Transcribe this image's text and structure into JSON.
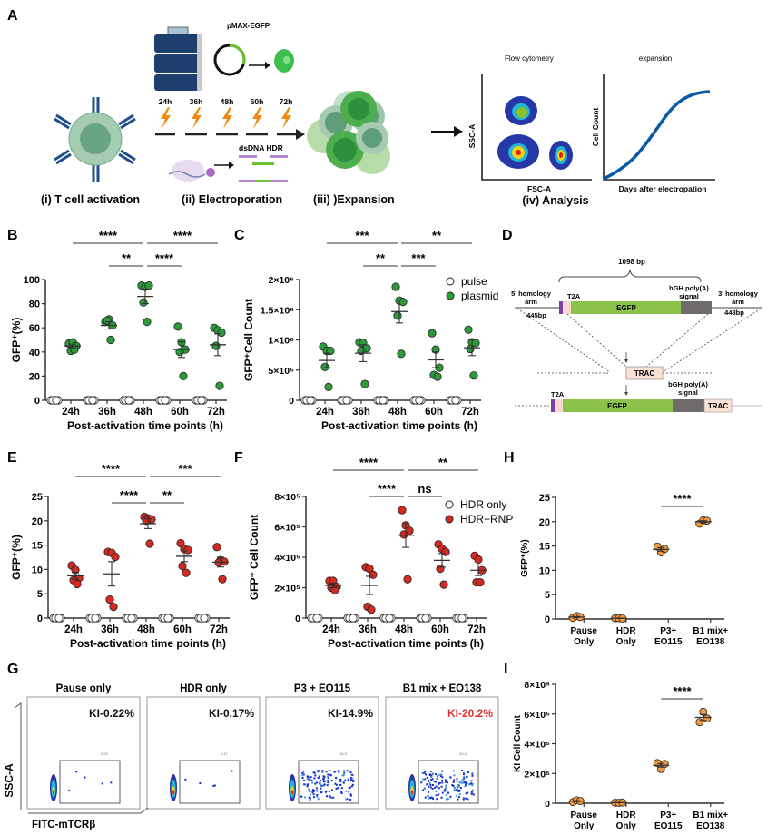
{
  "panel_labels": [
    "A",
    "B",
    "C",
    "D",
    "E",
    "F",
    "G",
    "H",
    "I"
  ],
  "panelA": {
    "device_name": "electroporator",
    "plasmid_label": "pMAX-EGFP",
    "time_points": [
      "24h",
      "36h",
      "48h",
      "60h",
      "72h"
    ],
    "hdr_label": "dsDNA HDR",
    "steps": [
      "(i) T cell activation",
      "(ii) Electroporation",
      "(iii) )Expansion",
      "(iv)  Analysis"
    ],
    "flow_title": "Flow cytometry",
    "flow_xlabel": "FSC-A",
    "flow_ylabel": "SSC-A",
    "expansion_title": "expansion",
    "expansion_xlabel": "Days after electropation",
    "expansion_ylabel": "Cell Count",
    "colors": {
      "cell": "#8fc4a0",
      "antibody": "#1f4e8c",
      "bolt": "#f08a12",
      "expansion_curve": "#0b5aa6"
    }
  },
  "panelD": {
    "insert_size": "1098 bp",
    "left_arm": "5' homology\narm",
    "left_arm_bp": "445bp",
    "right_arm": "3' homology\narm",
    "right_arm_bp": "448bp",
    "t2a": "T2A",
    "egfp": "EGFP",
    "polyA": "bGH poly(A)\nsignal",
    "trac": "TRAC",
    "colors": {
      "egfp": "#8bc34a",
      "polyA": "#706b6b",
      "trac": "#fbe2d4",
      "t2a": "#f7d6d6",
      "tag": "#7b3fa0"
    }
  },
  "panelG": {
    "xlabel": "FITC-mTCRβ",
    "ylabel": "SSC-A",
    "plots": [
      {
        "title": "Pause only",
        "ki": "KI-0.22%",
        "gate_value": "0.22",
        "highlight": false
      },
      {
        "title": "HDR only",
        "ki": "KI-0.17%",
        "gate_value": "0.17",
        "highlight": false
      },
      {
        "title": "P3 + EO115",
        "ki": "KI-14.9%",
        "gate_value": "14.9",
        "highlight": false
      },
      {
        "title": "B1 mix + EO138",
        "ki": "KI-20.2%",
        "gate_value": "20.2",
        "highlight": true
      }
    ],
    "highlight_color": "#e03030"
  },
  "chart_data": [
    {
      "id": "B",
      "type": "scatter",
      "title": "",
      "xlabel": "Post-activation time points (h)",
      "ylabel": "GFP⁺(%)",
      "categories": [
        "24h",
        "36h",
        "48h",
        "60h",
        "72h"
      ],
      "ylim": [
        0,
        100
      ],
      "yticks": [
        0,
        20,
        40,
        60,
        80,
        100
      ],
      "ytick_labels": [
        "0",
        "20",
        "40",
        "60",
        "80",
        "100"
      ],
      "series": [
        {
          "name": "pulse",
          "color": "#ffffff",
          "values": [
            [
              0,
              0,
              0,
              0,
              0
            ],
            [
              0,
              0,
              0,
              0,
              0
            ],
            [
              0,
              0,
              0,
              0,
              0
            ],
            [
              0,
              0,
              0,
              0,
              0
            ],
            [
              0,
              0,
              0,
              0,
              0
            ]
          ],
          "mean": [
            0,
            0,
            0,
            0,
            0
          ],
          "sem": [
            0,
            0,
            0,
            0,
            0
          ]
        },
        {
          "name": "plasmid",
          "color": "#2e9b3a",
          "values": [
            [
              47,
              48,
              45,
              41,
              42
            ],
            [
              65,
              67,
              62,
              66,
              50
            ],
            [
              95,
              94,
              95,
              81,
              65
            ],
            [
              61,
              48,
              42,
              40,
              20
            ],
            [
              60,
              58,
              56,
              45,
              12
            ]
          ],
          "mean": [
            45,
            62,
            86,
            42,
            46
          ],
          "sem": [
            1.5,
            3,
            6,
            6.5,
            9
          ]
        }
      ],
      "significance": [
        {
          "from": "24h",
          "to": "48h",
          "label": "****",
          "level": 2
        },
        {
          "from": "48h",
          "to": "72h",
          "label": "****",
          "level": 2
        },
        {
          "from": "36h",
          "to": "48h",
          "label": "**",
          "level": 1
        },
        {
          "from": "48h",
          "to": "60h",
          "label": "****",
          "level": 1
        }
      ]
    },
    {
      "id": "C",
      "type": "scatter",
      "title": "",
      "xlabel": "Post-activation time points (h)",
      "ylabel": "GFP⁺Cell Count",
      "categories": [
        "24h",
        "36h",
        "48h",
        "60h",
        "72h"
      ],
      "ylim": [
        0,
        2000000
      ],
      "yticks": [
        0,
        500000,
        1000000,
        1500000,
        2000000
      ],
      "ytick_labels": [
        "0",
        "5×10⁵",
        "1×10⁶",
        "1.5×10⁶",
        "2×10⁶"
      ],
      "legend": {
        "position": "top-right",
        "entries": [
          "pulse",
          "plasmid"
        ]
      },
      "series": [
        {
          "name": "pulse",
          "color": "#ffffff",
          "values": [
            [
              0,
              0,
              0,
              0,
              0
            ],
            [
              0,
              0,
              0,
              0,
              0
            ],
            [
              0,
              0,
              0,
              0,
              0
            ],
            [
              0,
              0,
              0,
              0,
              0
            ],
            [
              0,
              0,
              0,
              0,
              0
            ]
          ],
          "mean": [
            0,
            0,
            0,
            0,
            0
          ],
          "sem": [
            0,
            0,
            0,
            0,
            0
          ]
        },
        {
          "name": "plasmid",
          "color": "#2e9b3a",
          "values": [
            [
              890000,
              820000,
              820000,
              550000,
              220000
            ],
            [
              960000,
              950000,
              860000,
              820000,
              270000
            ],
            [
              1880000,
              1650000,
              1630000,
              1400000,
              770000
            ],
            [
              1110000,
              840000,
              540000,
              420000,
              390000
            ],
            [
              1170000,
              960000,
              950000,
              850000,
              410000
            ]
          ],
          "mean": [
            660000,
            780000,
            1470000,
            670000,
            870000
          ],
          "sem": [
            120000,
            140000,
            190000,
            130000,
            130000
          ]
        }
      ],
      "significance": [
        {
          "from": "24h",
          "to": "48h",
          "label": "***",
          "level": 2
        },
        {
          "from": "48h",
          "to": "72h",
          "label": "**",
          "level": 2
        },
        {
          "from": "36h",
          "to": "48h",
          "label": "**",
          "level": 1
        },
        {
          "from": "48h",
          "to": "60h",
          "label": "***",
          "level": 1
        }
      ]
    },
    {
      "id": "E",
      "type": "scatter",
      "title": "",
      "xlabel": "Post-activation time points (h)",
      "ylabel": "GFP⁺(%)",
      "categories": [
        "24h",
        "36h",
        "48h",
        "60h",
        "72h"
      ],
      "ylim": [
        0,
        25
      ],
      "yticks": [
        0,
        5,
        10,
        15,
        20,
        25
      ],
      "ytick_labels": [
        "0",
        "5",
        "10",
        "15",
        "20",
        "25"
      ],
      "series": [
        {
          "name": "HDR only",
          "color": "#ffffff",
          "values": [
            [
              0,
              0,
              0,
              0,
              0
            ],
            [
              0,
              0,
              0,
              0,
              0
            ],
            [
              0,
              0,
              0,
              0,
              0
            ],
            [
              0,
              0,
              0,
              0,
              0
            ],
            [
              0,
              0,
              0,
              0,
              0
            ]
          ],
          "mean": [
            0,
            0,
            0,
            0,
            0
          ],
          "sem": [
            0,
            0,
            0,
            0,
            0
          ]
        },
        {
          "name": "HDR+RNP",
          "color": "#d42a20",
          "values": [
            [
              10.8,
              9.9,
              8.2,
              7.8,
              7.0
            ],
            [
              13.6,
              13.4,
              12.6,
              3.8,
              2.3
            ],
            [
              20.8,
              20.5,
              20.3,
              20.0,
              15.3
            ],
            [
              15.4,
              14.2,
              14.0,
              10.7,
              9.3
            ],
            [
              14.6,
              11.9,
              11.6,
              11.4,
              8.0
            ]
          ],
          "mean": [
            8.7,
            9.1,
            19.4,
            12.7,
            11.5
          ],
          "sem": [
            0.7,
            2.5,
            1.0,
            1.1,
            1.0
          ]
        }
      ],
      "significance": [
        {
          "from": "24h",
          "to": "48h",
          "label": "****",
          "level": 2
        },
        {
          "from": "48h",
          "to": "72h",
          "label": "***",
          "level": 2
        },
        {
          "from": "36h",
          "to": "48h",
          "label": "****",
          "level": 1
        },
        {
          "from": "48h",
          "to": "60h",
          "label": "**",
          "level": 1
        }
      ]
    },
    {
      "id": "F",
      "type": "scatter",
      "title": "",
      "xlabel": "Post-activation time points (h)",
      "ylabel": "GFP⁺ Cell Count",
      "categories": [
        "24h",
        "36h",
        "48h",
        "60h",
        "72h"
      ],
      "ylim": [
        0,
        800000
      ],
      "yticks": [
        0,
        200000,
        400000,
        600000,
        800000
      ],
      "ytick_labels": [
        "0",
        "2×10⁵",
        "4×10⁵",
        "6×10⁵",
        "8×10⁵"
      ],
      "legend": {
        "position": "top-right",
        "entries": [
          "HDR only",
          "HDR+RNP"
        ]
      },
      "series": [
        {
          "name": "HDR only",
          "color": "#ffffff",
          "values": [
            [
              0,
              0,
              0,
              0,
              0
            ],
            [
              0,
              0,
              0,
              0,
              0
            ],
            [
              0,
              0,
              0,
              0,
              0
            ],
            [
              0,
              0,
              0,
              0,
              0
            ],
            [
              0,
              0,
              0,
              0,
              0
            ]
          ],
          "mean": [
            0,
            0,
            0,
            0,
            0
          ],
          "sem": [
            0,
            0,
            0,
            0,
            0
          ]
        },
        {
          "name": "HDR+RNP",
          "color": "#d42a20",
          "values": [
            [
              245000,
              245000,
              205000,
              200000,
              185000
            ],
            [
              335000,
              325000,
              285000,
              75000,
              55000
            ],
            [
              710000,
              610000,
              575000,
              550000,
              255000
            ],
            [
              485000,
              455000,
              435000,
              325000,
              220000
            ],
            [
              410000,
              385000,
              315000,
              235000,
              235000
            ]
          ],
          "mean": [
            215000,
            215000,
            545000,
            380000,
            315000
          ],
          "sem": [
            15000,
            60000,
            80000,
            45000,
            35000
          ]
        }
      ],
      "significance": [
        {
          "from": "24h",
          "to": "48h",
          "label": "****",
          "level": 2
        },
        {
          "from": "48h",
          "to": "72h",
          "label": "**",
          "level": 2
        },
        {
          "from": "36h",
          "to": "48h",
          "label": "****",
          "level": 1
        },
        {
          "from": "48h",
          "to": "60h",
          "label": "ns",
          "level": 1
        }
      ]
    },
    {
      "id": "H",
      "type": "scatter",
      "title": "",
      "xlabel": "",
      "ylabel": "GFP⁺(%)",
      "categories": [
        "Pause\nOnly",
        "HDR\nOnly",
        "P3+\nEO115",
        "B1 mix+\nEO138"
      ],
      "ylim": [
        0,
        25
      ],
      "yticks": [
        0,
        5,
        10,
        15,
        20,
        25
      ],
      "ytick_labels": [
        "0",
        "5",
        "10",
        "15",
        "20",
        "25"
      ],
      "series": [
        {
          "name": "KI",
          "color": "#f39a3c",
          "values": [
            [
              0.22,
              0.6,
              0.4
            ],
            [
              0.17,
              0.15,
              0.1
            ],
            [
              14.9,
              13.7,
              14.4
            ],
            [
              19.6,
              20.3,
              20.2
            ]
          ],
          "mean": [
            0.4,
            0.14,
            14.3,
            20.0
          ],
          "sem": [
            0.1,
            0.02,
            0.35,
            0.2
          ]
        }
      ],
      "significance": [
        {
          "from": "P3+\nEO115",
          "to": "B1 mix+\nEO138",
          "label": "****",
          "level": 1
        }
      ]
    },
    {
      "id": "I",
      "type": "scatter",
      "title": "",
      "xlabel": "",
      "ylabel": "KI Cell Count",
      "categories": [
        "Pause\nOnly",
        "HDR\nOnly",
        "P3+\nEO115",
        "B1 mix+\nEO138"
      ],
      "ylim": [
        0,
        800000
      ],
      "yticks": [
        0,
        200000,
        400000,
        600000,
        800000
      ],
      "ytick_labels": [
        "0",
        "2×10⁵",
        "4×10⁵",
        "6×10⁵",
        "8×10⁵"
      ],
      "series": [
        {
          "name": "KI",
          "color": "#f39a3c",
          "values": [
            [
              8000,
              20000,
              15000
            ],
            [
              4000,
              3000,
              5000
            ],
            [
              270000,
              230000,
              265000
            ],
            [
              545000,
              615000,
              570000
            ]
          ],
          "mean": [
            14000,
            4000,
            255000,
            577000
          ],
          "sem": [
            3500,
            600,
            12000,
            20000
          ]
        }
      ],
      "significance": [
        {
          "from": "P3+\nEO115",
          "to": "B1 mix+\nEO138",
          "label": "****",
          "level": 1
        }
      ]
    }
  ]
}
